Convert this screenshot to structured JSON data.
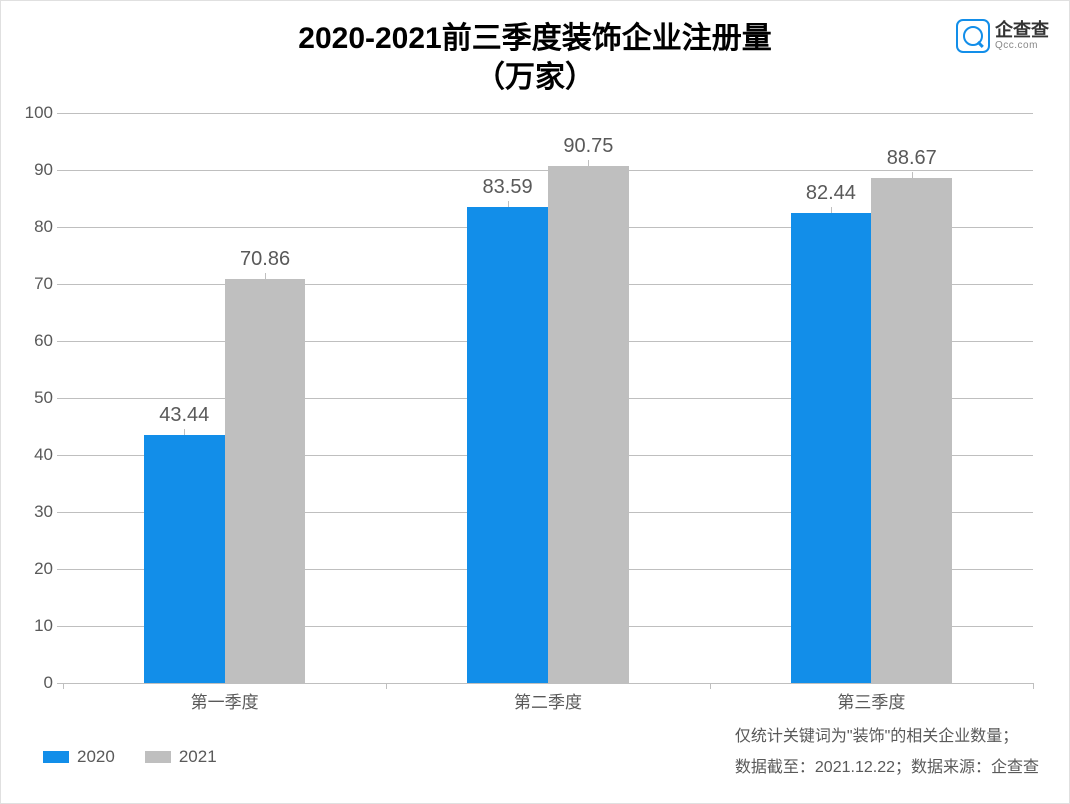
{
  "chart": {
    "type": "bar-grouped",
    "title_line1": "2020-2021前三季度装饰企业注册量",
    "title_line2": "（万家）",
    "title_fontsize": 30,
    "title_color": "#000000",
    "background_color": "#ffffff",
    "categories": [
      "第一季度",
      "第二季度",
      "第三季度"
    ],
    "series": [
      {
        "name": "2020",
        "color": "#128ee9",
        "values": [
          43.44,
          83.59,
          82.44
        ]
      },
      {
        "name": "2021",
        "color": "#bfbfbf",
        "values": [
          70.86,
          90.75,
          88.67
        ]
      }
    ],
    "y_axis": {
      "min": 0,
      "max": 100,
      "tick_step": 10,
      "ticks": [
        0,
        10,
        20,
        30,
        40,
        50,
        60,
        70,
        80,
        90,
        100
      ],
      "label_fontsize": 17,
      "label_color": "#595959",
      "grid_color": "#bfbfbf"
    },
    "x_axis": {
      "label_fontsize": 17,
      "label_color": "#595959"
    },
    "bar_label_fontsize": 20,
    "bar_label_color": "#595959",
    "group_width_ratio": 0.5,
    "bar_gap_ratio": 0.0
  },
  "legend": {
    "items": [
      "2020",
      "2021"
    ],
    "colors": [
      "#128ee9",
      "#bfbfbf"
    ],
    "fontsize": 17,
    "swatch_w": 26,
    "swatch_h": 12
  },
  "footnotes": {
    "line1": "仅统计关键词为\"装饰\"的相关企业数量；",
    "line2": "数据截至：2021.12.22；数据来源：企查查",
    "fontsize": 16,
    "color": "#595959"
  },
  "logo": {
    "cn": "企查查",
    "en": "Qcc.com",
    "color": "#128ee9"
  }
}
